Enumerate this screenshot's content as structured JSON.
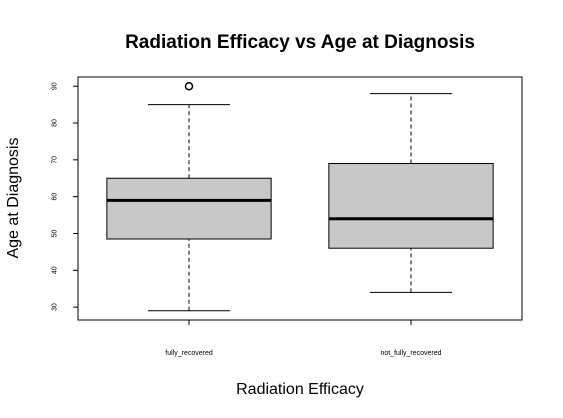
{
  "chart_data": {
    "type": "boxplot",
    "title": "Radiation Efficacy vs Age at Diagnosis",
    "xlabel": "Radiation Efficacy",
    "ylabel": "Age at Diagnosis",
    "categories": [
      "fully_recovered",
      "not_fully_recovered"
    ],
    "yticks": [
      30,
      40,
      50,
      60,
      70,
      80,
      90
    ],
    "ylim": [
      26.5,
      92.5
    ],
    "boxes": [
      {
        "category": "fully_recovered",
        "whisker_low": 29,
        "q1": 48.5,
        "median": 59,
        "q3": 65,
        "whisker_high": 85,
        "outliers": [
          90
        ]
      },
      {
        "category": "not_fully_recovered",
        "whisker_low": 34,
        "q1": 46,
        "median": 54,
        "q3": 69,
        "whisker_high": 88,
        "outliers": []
      }
    ],
    "box_fill": "#c8c8c8",
    "line_color": "#000000",
    "grid": false,
    "legend": "none"
  }
}
